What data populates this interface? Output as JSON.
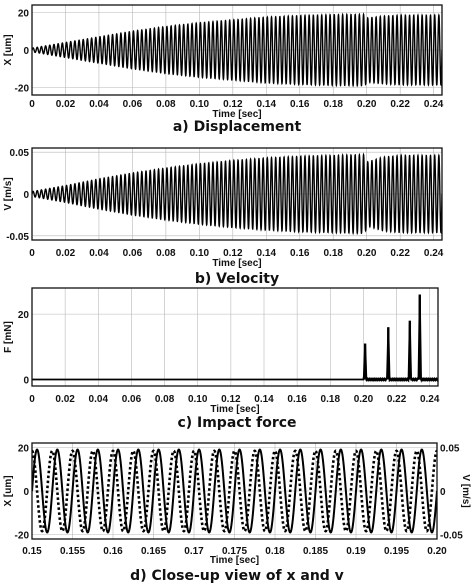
{
  "chart_data": [
    {
      "id": "a",
      "type": "line",
      "caption": "a) Displacement",
      "xlabel": "Time [sec]",
      "ylabel": "X [um]",
      "xlim": [
        0,
        0.245
      ],
      "ylim": [
        -24,
        24
      ],
      "xticks": [
        0,
        0.02,
        0.04,
        0.06,
        0.08,
        0.1,
        0.12,
        0.14,
        0.16,
        0.18,
        0.2,
        0.22,
        0.24
      ],
      "xtick_labels": [
        "0",
        "0.02",
        "0.04",
        "0.06",
        "0.08",
        "0.10",
        "0.12",
        "0.14",
        "0.16",
        "0.18",
        "0.20",
        "0.22",
        "0.24"
      ],
      "yticks": [
        -20,
        0,
        20
      ],
      "ytick_labels": [
        "-20",
        "0",
        "20"
      ],
      "grid": true,
      "series": [
        {
          "envelope_t": [
            0,
            0.02,
            0.04,
            0.06,
            0.08,
            0.1,
            0.12,
            0.14,
            0.16,
            0.18,
            0.199,
            0.2,
            0.21,
            0.22,
            0.245
          ],
          "envelope_amp": [
            1,
            4,
            7,
            10,
            12.5,
            14.5,
            16,
            17.5,
            18.3,
            18.8,
            19,
            17,
            18,
            18.5,
            18.6
          ],
          "frequency_hz": 400
        }
      ]
    },
    {
      "id": "b",
      "type": "line",
      "caption": "b) Velocity",
      "xlabel": "Time [sec]",
      "ylabel": "V [m/s]",
      "xlim": [
        0,
        0.245
      ],
      "ylim": [
        -0.055,
        0.055
      ],
      "xticks": [
        0,
        0.02,
        0.04,
        0.06,
        0.08,
        0.1,
        0.12,
        0.14,
        0.16,
        0.18,
        0.2,
        0.22,
        0.24
      ],
      "xtick_labels": [
        "0",
        "0.02",
        "0.04",
        "0.06",
        "0.08",
        "0.10",
        "0.12",
        "0.14",
        "0.16",
        "0.18",
        "0.20",
        "0.22",
        "0.24"
      ],
      "yticks": [
        -0.05,
        0,
        0.05
      ],
      "ytick_labels": [
        "-0.05",
        "0",
        "0.05"
      ],
      "grid": true,
      "series": [
        {
          "envelope_t": [
            0,
            0.02,
            0.04,
            0.06,
            0.08,
            0.1,
            0.12,
            0.14,
            0.16,
            0.18,
            0.199,
            0.2,
            0.21,
            0.22,
            0.245
          ],
          "envelope_amp": [
            0.003,
            0.01,
            0.018,
            0.025,
            0.031,
            0.036,
            0.04,
            0.043,
            0.045,
            0.046,
            0.047,
            0.038,
            0.044,
            0.046,
            0.046
          ],
          "frequency_hz": 400
        }
      ]
    },
    {
      "id": "c",
      "type": "line",
      "caption": "c) Impact force",
      "xlabel": "Time [sec]",
      "ylabel": "F [mN]",
      "xlim": [
        0,
        0.245
      ],
      "ylim": [
        -2,
        28
      ],
      "xticks": [
        0,
        0.02,
        0.04,
        0.06,
        0.08,
        0.1,
        0.12,
        0.14,
        0.16,
        0.18,
        0.2,
        0.22,
        0.24
      ],
      "xtick_labels": [
        "0",
        "0.02",
        "0.04",
        "0.06",
        "0.08",
        "0.10",
        "0.12",
        "0.14",
        "0.16",
        "0.18",
        "0.20",
        "0.22",
        "0.24"
      ],
      "yticks": [
        0,
        20
      ],
      "ytick_labels": [
        "0",
        "20"
      ],
      "grid": true,
      "series": [
        {
          "spikes_t": [
            0.201,
            0.215,
            0.228,
            0.234
          ],
          "spikes_v": [
            11,
            16,
            18,
            26
          ]
        }
      ]
    },
    {
      "id": "d",
      "type": "line",
      "caption": "d) Close-up view of x and v",
      "xlabel": "Time [sec]",
      "ylabel": "X [um]",
      "ylabel_right": "V [m/s]",
      "xlim": [
        0.15,
        0.2
      ],
      "ylim": [
        -22,
        22
      ],
      "ylim_right": [
        -0.055,
        0.055
      ],
      "xticks": [
        0.15,
        0.155,
        0.16,
        0.165,
        0.17,
        0.175,
        0.18,
        0.185,
        0.19,
        0.195,
        0.2
      ],
      "xtick_labels": [
        "0.15",
        "0.155",
        "0.16",
        "0.165",
        "0.17",
        "0.175",
        "0.18",
        "0.185",
        "0.19",
        "0.195",
        "0.20"
      ],
      "yticks": [
        -20,
        0,
        20
      ],
      "ytick_labels": [
        "-20",
        "0",
        "20"
      ],
      "yticks_right": [
        -0.05,
        0,
        0.05
      ],
      "ytick_labels_right": [
        "-0.05",
        "0",
        "0.05"
      ],
      "grid": true,
      "series": [
        {
          "style": "solid",
          "axis": "left",
          "amplitude": 19,
          "frequency_hz": 400
        },
        {
          "style": "dotted",
          "axis": "right",
          "amplitude": 0.046,
          "frequency_hz": 400,
          "phase_lead": "quarter-cycle"
        }
      ]
    }
  ]
}
